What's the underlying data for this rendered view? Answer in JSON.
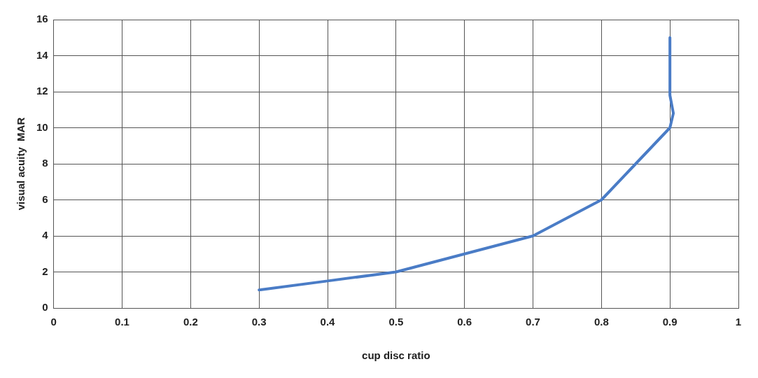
{
  "chart_data": {
    "type": "line",
    "xlabel": "cup disc ratio",
    "ylabel": "visual acuity  MAR",
    "x": [
      0.3,
      0.4,
      0.5,
      0.6,
      0.7,
      0.8,
      0.85,
      0.9,
      0.905,
      0.9,
      0.9
    ],
    "series": [
      {
        "color": "#4a7cc6",
        "values": [
          1,
          1.5,
          2,
          3,
          4,
          6,
          8,
          10,
          10.8,
          11.8,
          15
        ]
      }
    ],
    "xlim": [
      0,
      1
    ],
    "xticks": [
      0,
      0.1,
      0.2,
      0.3,
      0.4,
      0.5,
      0.6,
      0.7,
      0.8,
      0.9,
      1
    ],
    "ylim": [
      0,
      16
    ],
    "yticks": [
      0,
      2,
      4,
      6,
      8,
      10,
      12,
      14,
      16
    ],
    "grid": true,
    "legend": false,
    "marker": "none",
    "line_style": "solid"
  }
}
